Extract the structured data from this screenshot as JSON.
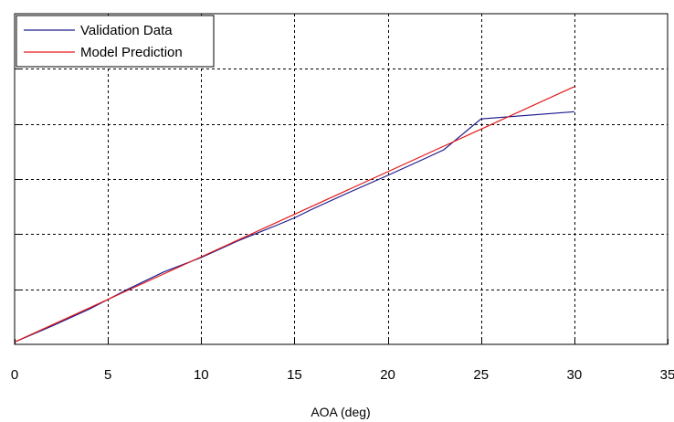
{
  "chart_data": {
    "type": "line",
    "title": "",
    "xlabel": "AOA (deg)",
    "ylabel": "",
    "xlim": [
      0,
      35
    ],
    "xticks": [
      "0",
      "5",
      "10",
      "15",
      "20",
      "25",
      "30",
      "35"
    ],
    "y_tick_count": 6,
    "grid": true,
    "grid_style": "dashed",
    "legend_position": "top-left",
    "series": [
      {
        "name": "Validation Data",
        "color": "#1a1a8c",
        "x": [
          0,
          2,
          4,
          6,
          8,
          10,
          12,
          14,
          15,
          16,
          18,
          20,
          22,
          23,
          25,
          30
        ],
        "y": [
          0.0,
          0.33,
          0.68,
          1.08,
          1.45,
          1.75,
          2.1,
          2.41,
          2.57,
          2.76,
          3.11,
          3.45,
          3.8,
          3.98,
          4.62,
          4.77
        ]
      },
      {
        "name": "Model Prediction",
        "color": "#e41a1a",
        "x": [
          0,
          30
        ],
        "y": [
          0.0,
          5.29
        ]
      }
    ]
  }
}
